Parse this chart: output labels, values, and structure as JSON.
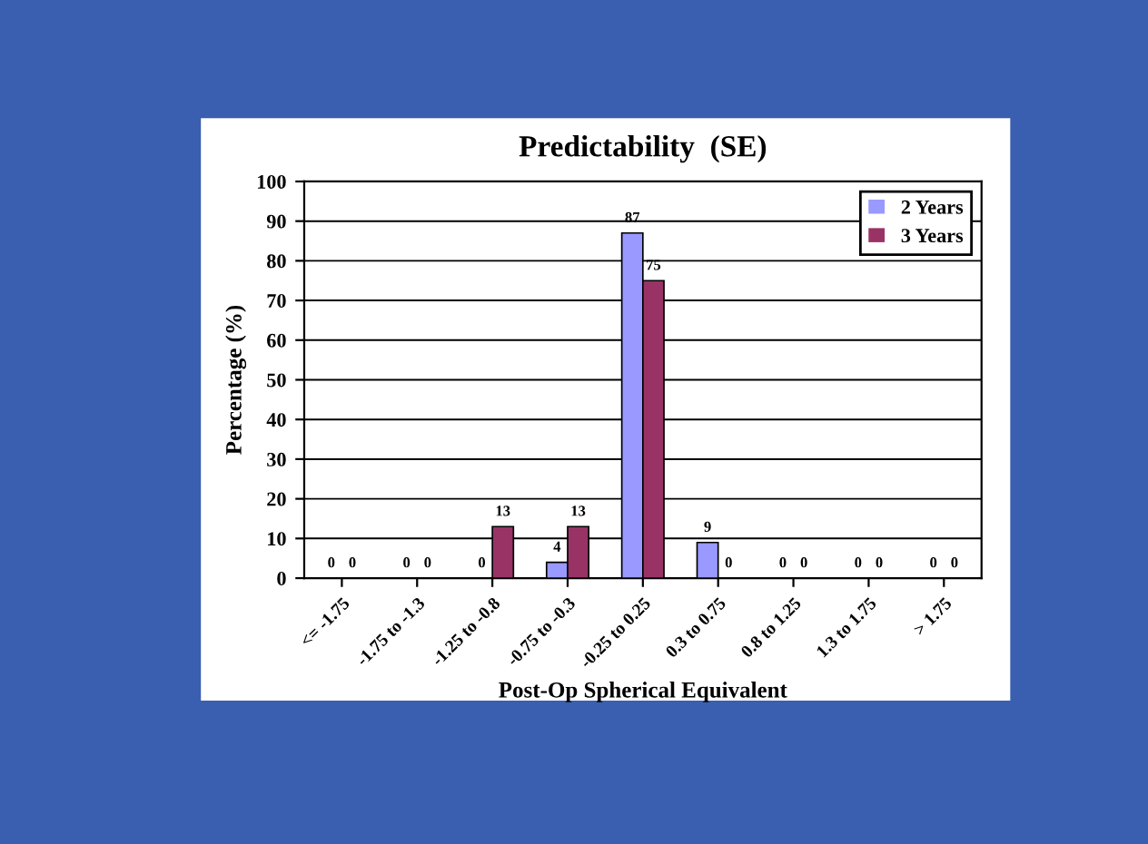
{
  "chart_data": {
    "type": "bar",
    "title": "Predictability  (SE)",
    "xlabel": "Post-Op Spherical Equivalent",
    "ylabel": "Percentage (%)",
    "categories": [
      "<= -1.75",
      "-1.75 to -1.3",
      "-1.25 to -0.8",
      "-0.75 to -0.3",
      "-0.25 to 0.25",
      "0.3 to 0.75",
      "0.8 to 1.25",
      "1.3 to 1.75",
      "> 1.75"
    ],
    "series": [
      {
        "name": "2 Years",
        "color": "#9999ff",
        "values": [
          0,
          0,
          0,
          4,
          87,
          9,
          0,
          0,
          0
        ]
      },
      {
        "name": "3 Years",
        "color": "#993366",
        "values": [
          0,
          0,
          13,
          13,
          75,
          0,
          0,
          0,
          0
        ]
      }
    ],
    "ylim": [
      0,
      100
    ],
    "yticks": [
      0,
      10,
      20,
      30,
      40,
      50,
      60,
      70,
      80,
      90,
      100
    ],
    "grid": "y",
    "legend": "top right",
    "data_labels": true
  }
}
